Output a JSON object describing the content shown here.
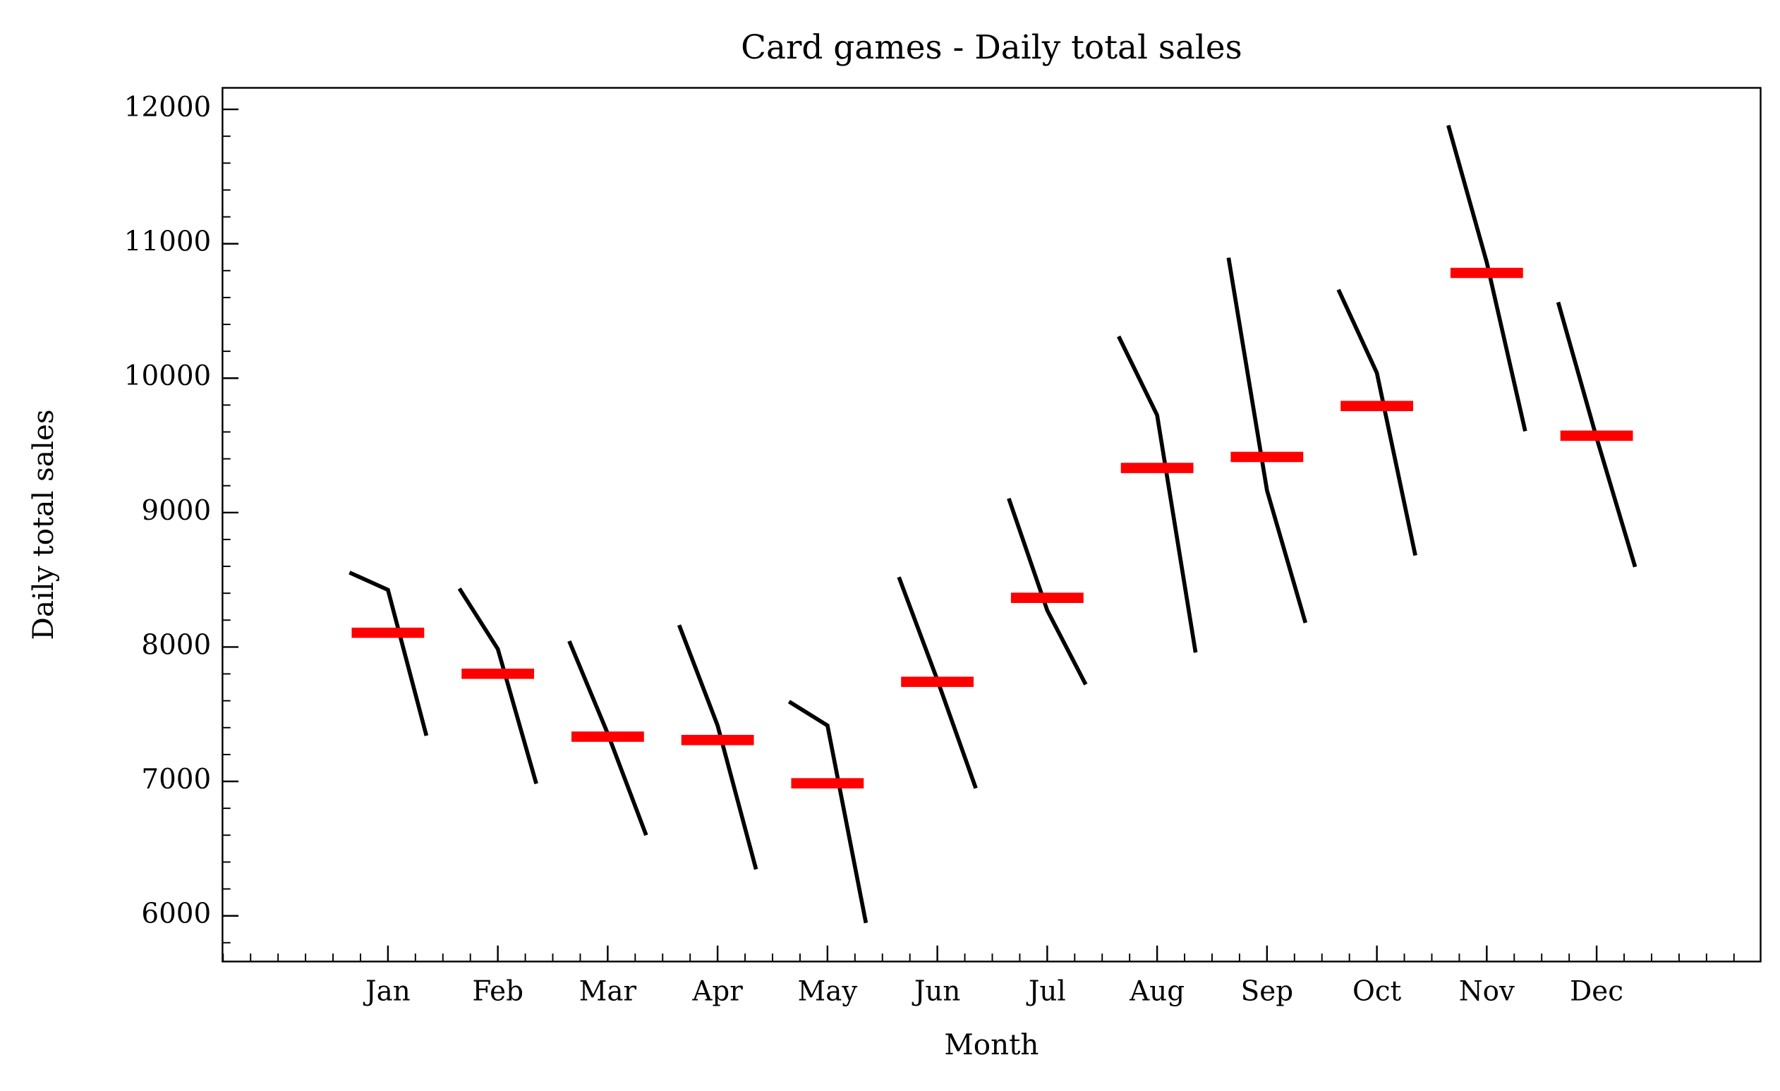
{
  "chart_data": {
    "type": "month_plot",
    "title": "Card games - Daily total sales",
    "xlabel": "Month",
    "ylabel": "Daily total sales",
    "categories": [
      "Jan",
      "Feb",
      "Mar",
      "Apr",
      "May",
      "Jun",
      "Jul",
      "Aug",
      "Sep",
      "Oct",
      "Nov",
      "Dec"
    ],
    "values": [
      [
        8554,
        8425,
        7340
      ],
      [
        8435,
        7985,
        6983
      ],
      [
        8044,
        7356,
        6600
      ],
      [
        8163,
        7416,
        6346
      ],
      [
        7594,
        7416,
        5947
      ],
      [
        8520,
        7755,
        6949
      ],
      [
        9105,
        8273,
        7721
      ],
      [
        10311,
        9725,
        7959
      ],
      [
        10896,
        9165,
        8180
      ],
      [
        10659,
        10039,
        8681
      ],
      [
        11881,
        10862,
        9606
      ],
      [
        10565,
        9555,
        8596
      ]
    ],
    "means": [
      8106,
      7801,
      7333,
      7308,
      6986,
      7741,
      8366,
      9332,
      9414,
      9793,
      10783,
      9572
    ],
    "color": "#000000",
    "mean_color": "#ff0000",
    "ylim": [
      5660,
      12160
    ],
    "yticks": [
      6000,
      7000,
      8000,
      9000,
      10000,
      11000,
      12000
    ]
  }
}
